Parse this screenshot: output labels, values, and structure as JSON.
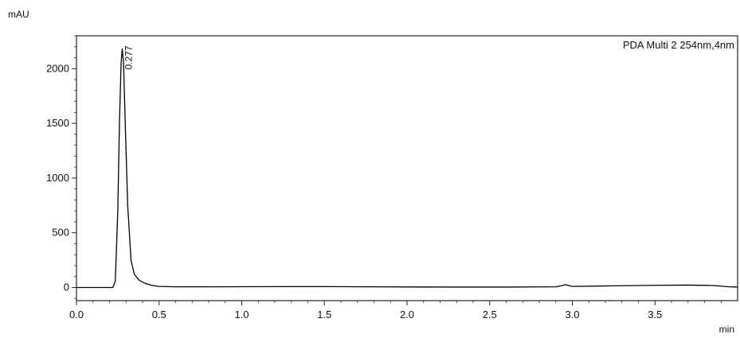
{
  "chart_data": {
    "type": "line",
    "ylabel": "mAU",
    "xlabel": "min",
    "xlim": [
      0.0,
      4.0
    ],
    "ylim": [
      -120,
      2300
    ],
    "x_ticks": [
      "0.0",
      "0.5",
      "1.0",
      "1.5",
      "2.0",
      "2.5",
      "3.0",
      "3.5"
    ],
    "y_ticks": [
      "0",
      "500",
      "1000",
      "1500",
      "2000"
    ],
    "x_tick_values": [
      0.0,
      0.5,
      1.0,
      1.5,
      2.0,
      2.5,
      3.0,
      3.5
    ],
    "y_tick_values": [
      0,
      500,
      1000,
      1500,
      2000
    ],
    "series": [
      {
        "name": "PDA Multi 2 254nm,4nm",
        "color": "#000000",
        "x": [
          0.0,
          0.22,
          0.235,
          0.25,
          0.26,
          0.27,
          0.277,
          0.285,
          0.295,
          0.31,
          0.33,
          0.35,
          0.38,
          0.42,
          0.46,
          0.5,
          0.6,
          0.8,
          1.0,
          1.3,
          1.5,
          1.8,
          2.0,
          2.3,
          2.6,
          2.9,
          2.94,
          2.96,
          2.98,
          3.0,
          3.2,
          3.5,
          3.7,
          3.85,
          3.95,
          4.0
        ],
        "y": [
          0,
          0,
          60,
          700,
          1500,
          2050,
          2180,
          2050,
          1500,
          750,
          250,
          120,
          65,
          35,
          18,
          10,
          6,
          6,
          7,
          8,
          8,
          6,
          5,
          4,
          4,
          6,
          18,
          26,
          16,
          10,
          14,
          20,
          22,
          18,
          6,
          4
        ]
      }
    ],
    "annotations": [
      {
        "text": "0.277",
        "x": 0.277,
        "y": 2180
      }
    ],
    "legend": "top-right",
    "grid": false
  }
}
